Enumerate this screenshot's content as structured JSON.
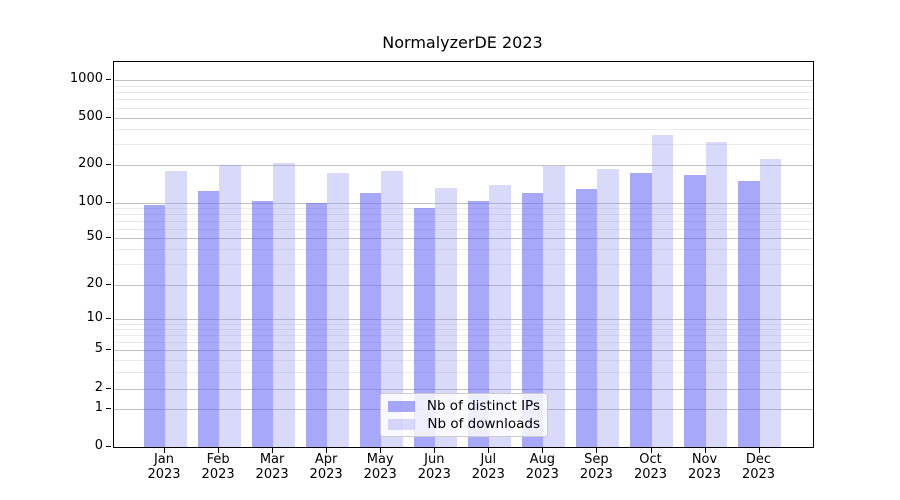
{
  "chart_data": {
    "type": "bar",
    "title": "NormalyzerDE 2023",
    "x_axis": {
      "months": [
        "Jan",
        "Feb",
        "Mar",
        "Apr",
        "May",
        "Jun",
        "Jul",
        "Aug",
        "Sep",
        "Oct",
        "Nov",
        "Dec"
      ],
      "year_label": "2023"
    },
    "y_axis": {
      "scale": "symlog",
      "ticks": [
        0,
        1,
        2,
        5,
        10,
        20,
        50,
        100,
        200,
        500,
        1000
      ],
      "minor_ticks": [
        3,
        4,
        6,
        7,
        8,
        9,
        30,
        40,
        60,
        70,
        80,
        90,
        300,
        400,
        600,
        700,
        800,
        900
      ],
      "range_top_value": 1400
    },
    "series": [
      {
        "name": "Nb of distinct IPs",
        "color": "#a8a8fa",
        "fill": "rgba(105,105,246,0.58)",
        "values": [
          95,
          123,
          103,
          100,
          120,
          90,
          102,
          120,
          128,
          170,
          164,
          147
        ]
      },
      {
        "name": "Nb of downloads",
        "color": "#d9d9fa",
        "fill": "rgba(136,136,239,0.32)",
        "values": [
          177,
          200,
          205,
          170,
          178,
          130,
          138,
          193,
          183,
          360,
          310,
          225
        ]
      }
    ],
    "legend": {
      "position": "inside-lower-center"
    },
    "grid": {
      "major_color": "#c2c2c2",
      "minor_color": "#eaeaea"
    }
  }
}
